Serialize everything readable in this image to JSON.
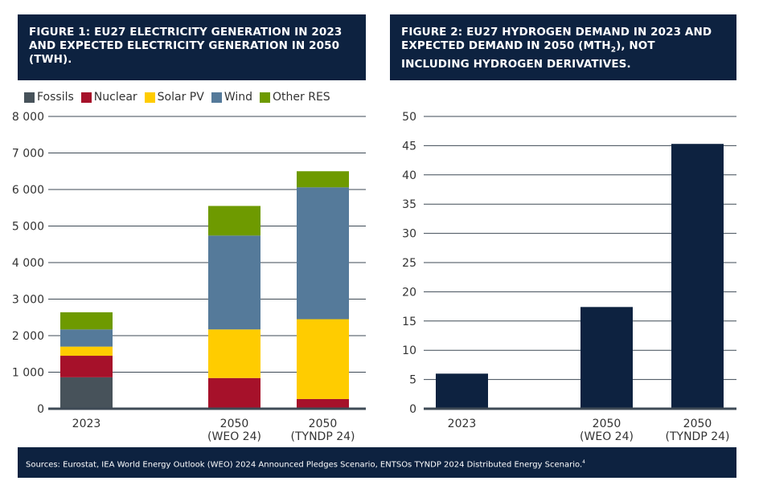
{
  "chart_data": [
    {
      "type": "bar",
      "stacked": true,
      "title": "FIGURE 1: EU27 ELECTRICITY GENERATION IN 2023 AND EXPECTED ELECTRICITY GENERATION IN 2050 (TWH).",
      "categories": [
        "2023",
        "2050\n(WEO 24)",
        "2050\n(TYNDP 24)"
      ],
      "ylim": [
        0,
        8000
      ],
      "yticks": [
        0,
        1000,
        2000,
        3000,
        4000,
        5000,
        6000,
        7000,
        8000
      ],
      "ytick_labels": [
        "0",
        "1 000",
        "2 000",
        "3 000",
        "4 000",
        "5 000",
        "6 000",
        "7 000",
        "8 000"
      ],
      "legend": "top",
      "grid": true,
      "series": [
        {
          "name": "Fossils",
          "color": "#47525a",
          "values": [
            860,
            0,
            0
          ]
        },
        {
          "name": "Nuclear",
          "color": "#a6112a",
          "values": [
            590,
            840,
            265
          ]
        },
        {
          "name": "Solar PV",
          "color": "#ffcc00",
          "values": [
            250,
            1330,
            2185
          ]
        },
        {
          "name": "Wind",
          "color": "#557a9a",
          "values": [
            470,
            2570,
            3610
          ]
        },
        {
          "name": "Other RES",
          "color": "#6e9a00",
          "values": [
            470,
            810,
            440
          ]
        }
      ]
    },
    {
      "type": "bar",
      "title": "FIGURE 2: EU27 HYDROGEN DEMAND IN 2023 AND EXPECTED DEMAND IN 2050 (MTH2), NOT INCLUDING HYDROGEN DERIVATIVES.",
      "categories": [
        "2023",
        "2050\n(WEO 24)",
        "2050\n(TYNDP 24)"
      ],
      "values": [
        6.0,
        17.4,
        45.3
      ],
      "color": "#0d2240",
      "ylim": [
        0,
        50
      ],
      "yticks": [
        0,
        5,
        10,
        15,
        20,
        25,
        30,
        35,
        40,
        45,
        50
      ],
      "grid": true
    }
  ],
  "headers": {
    "fig1": "FIGURE 1: EU27 ELECTRICITY GENERATION IN 2023 AND EXPECTED ELECTRICITY GENERATION IN 2050 (TWH).",
    "fig2_a": "FIGURE 2: EU27 HYDROGEN DEMAND IN 2023 AND EXPECTED DEMAND IN 2050 (MTH",
    "fig2_sub": "2",
    "fig2_b": "), NOT INCLUDING HYDROGEN DERIVATIVES."
  },
  "footer": "Sources: Eurostat, IEA World Energy Outlook (WEO) 2024 Announced Pledges Scenario, ENTSOs TYNDP 2024 Distributed Energy Scenario.",
  "footnote": "4"
}
